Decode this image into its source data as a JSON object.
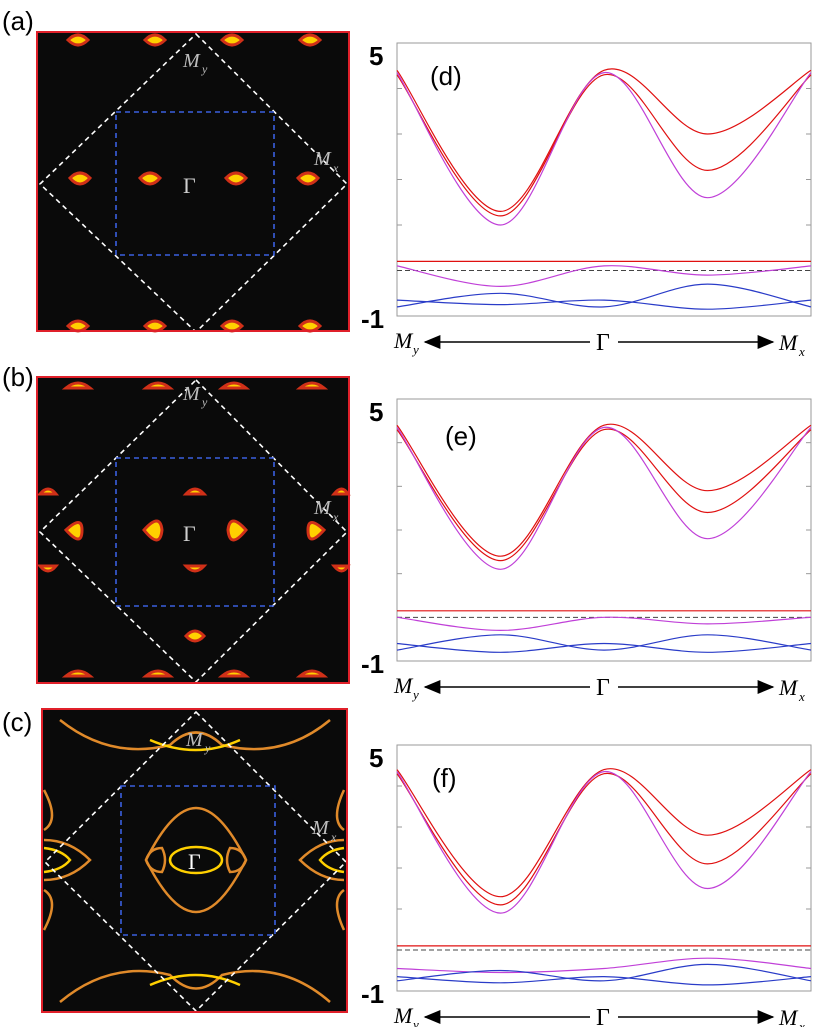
{
  "figure": {
    "fermi_surface_panels": [
      {
        "id": "a",
        "label": "(a)"
      },
      {
        "id": "b",
        "label": "(b)"
      },
      {
        "id": "c",
        "label": "(c)"
      }
    ],
    "fs_point_labels": {
      "gamma": "Γ",
      "my_main": "M",
      "my_sub": "y",
      "mx_main": "M",
      "mx_sub": "x"
    },
    "colors": {
      "fs_background": "#0a0a0a",
      "fs_frame": "#e0202a",
      "fs_pocket_outer": "#d03018",
      "fs_pocket_inner": "#ffd000",
      "rbz_dash": "#3a5fe0",
      "bz_dash": "#ffffff",
      "band_red": "#e01010",
      "band_magenta": "#c040d8",
      "band_blue": "#2a3cc8",
      "fermi_dash": "#444444"
    }
  },
  "chart_data": [
    {
      "type": "line",
      "panel": "(d)",
      "ymax_label": "5",
      "ymin_label": "-1",
      "ylim": [
        -1,
        5
      ],
      "x_ticks": {
        "left_main": "M",
        "left_sub": "y",
        "center": "Γ",
        "right_main": "M",
        "right_sub": "x"
      },
      "fermi_level": 0.0,
      "x": [
        0,
        0.25,
        0.5,
        0.75,
        1.0
      ],
      "bands": [
        {
          "color": "red",
          "values": [
            4.4,
            1.3,
            4.4,
            3.0,
            4.4
          ]
        },
        {
          "color": "red",
          "values": [
            4.3,
            1.2,
            4.3,
            2.2,
            4.3
          ]
        },
        {
          "color": "magenta",
          "values": [
            4.35,
            1.0,
            4.35,
            1.6,
            4.35
          ]
        },
        {
          "color": "magenta",
          "values": [
            0.1,
            -0.35,
            0.1,
            -0.1,
            0.1
          ]
        },
        {
          "color": "red",
          "values": [
            0.2,
            0.2,
            0.2,
            0.2,
            0.2
          ]
        },
        {
          "color": "blue",
          "values": [
            -0.8,
            -0.5,
            -0.8,
            -0.3,
            -0.8
          ]
        },
        {
          "color": "blue",
          "values": [
            -0.65,
            -0.75,
            -0.65,
            -0.85,
            -0.65
          ]
        }
      ]
    },
    {
      "type": "line",
      "panel": "(e)",
      "ymax_label": "5",
      "ymin_label": "-1",
      "ylim": [
        -1,
        5
      ],
      "x_ticks": {
        "left_main": "M",
        "left_sub": "y",
        "center": "Γ",
        "right_main": "M",
        "right_sub": "x"
      },
      "fermi_level": 0.0,
      "x": [
        0,
        0.25,
        0.5,
        0.75,
        1.0
      ],
      "bands": [
        {
          "color": "red",
          "values": [
            4.4,
            1.4,
            4.4,
            2.9,
            4.4
          ]
        },
        {
          "color": "red",
          "values": [
            4.3,
            1.3,
            4.3,
            2.4,
            4.3
          ]
        },
        {
          "color": "magenta",
          "values": [
            4.35,
            1.1,
            4.35,
            1.8,
            4.35
          ]
        },
        {
          "color": "magenta",
          "values": [
            0.0,
            -0.3,
            0.0,
            -0.15,
            0.0
          ]
        },
        {
          "color": "red",
          "values": [
            0.15,
            0.15,
            0.15,
            0.15,
            0.15
          ]
        },
        {
          "color": "blue",
          "values": [
            -0.75,
            -0.4,
            -0.75,
            -0.4,
            -0.75
          ]
        },
        {
          "color": "blue",
          "values": [
            -0.6,
            -0.8,
            -0.6,
            -0.8,
            -0.6
          ]
        }
      ]
    },
    {
      "type": "line",
      "panel": "(f)",
      "ymax_label": "5",
      "ymin_label": "-1",
      "ylim": [
        -1,
        5
      ],
      "x_ticks": {
        "left_main": "M",
        "left_sub": "y",
        "center": "Γ",
        "right_main": "M",
        "right_sub": "x"
      },
      "fermi_level": 0.0,
      "x": [
        0,
        0.25,
        0.5,
        0.75,
        1.0
      ],
      "bands": [
        {
          "color": "red",
          "values": [
            4.4,
            1.3,
            4.4,
            2.8,
            4.4
          ]
        },
        {
          "color": "red",
          "values": [
            4.3,
            1.1,
            4.3,
            2.1,
            4.3
          ]
        },
        {
          "color": "magenta",
          "values": [
            4.35,
            0.9,
            4.35,
            1.5,
            4.35
          ]
        },
        {
          "color": "magenta",
          "values": [
            -0.45,
            -0.55,
            -0.45,
            -0.2,
            -0.45
          ]
        },
        {
          "color": "red",
          "values": [
            0.1,
            0.1,
            0.1,
            0.1,
            0.1
          ]
        },
        {
          "color": "blue",
          "values": [
            -0.75,
            -0.5,
            -0.75,
            -0.35,
            -0.75
          ]
        },
        {
          "color": "blue",
          "values": [
            -0.65,
            -0.8,
            -0.65,
            -0.85,
            -0.65
          ]
        }
      ]
    }
  ]
}
